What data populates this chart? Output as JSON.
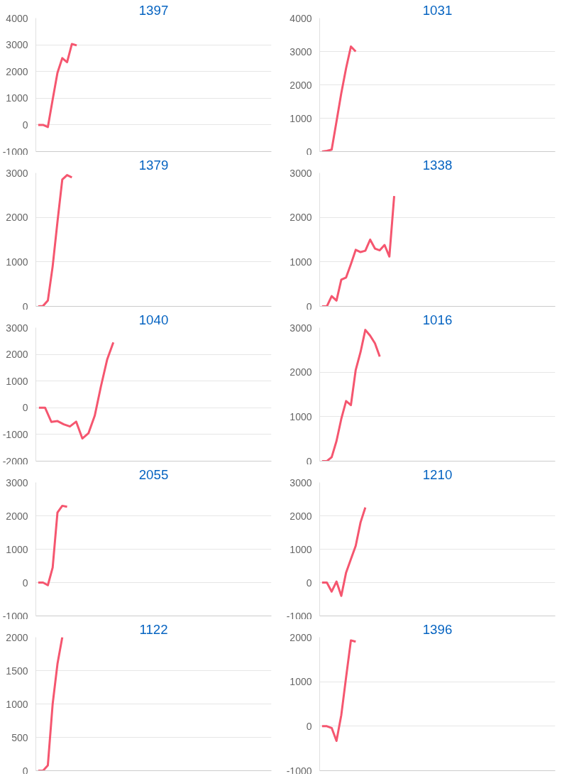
{
  "chart_data": [
    {
      "type": "line",
      "title": "1397",
      "tick_labels": "y",
      "grid": "y",
      "ylim": [
        -1000,
        4000
      ],
      "yticks": [
        -1000,
        0,
        1000,
        2000,
        3000,
        4000
      ],
      "categories": [
        null,
        null,
        null,
        null,
        null,
        null,
        null,
        null,
        null,
        null,
        null,
        null,
        null,
        null,
        null,
        null,
        null,
        null,
        null,
        null,
        null,
        null,
        null,
        null,
        null,
        null,
        null,
        null,
        null,
        null,
        null,
        null,
        null,
        null,
        null,
        null,
        null,
        null,
        null,
        null,
        null,
        null,
        null,
        null,
        null,
        null,
        null,
        null,
        null
      ],
      "series": [
        {
          "color": "#f5566f",
          "values": [
            0,
            0,
            -80,
            950,
            1950,
            2500,
            2350,
            3030,
            2980,
            null,
            null,
            null,
            null,
            null,
            null,
            null,
            null,
            null,
            null,
            null,
            null,
            null,
            null,
            null,
            null,
            null,
            null,
            null,
            null,
            null,
            null,
            null,
            null,
            null,
            null,
            null,
            null,
            null,
            null,
            null,
            null,
            null,
            null,
            null,
            null,
            null,
            null,
            null,
            null
          ]
        }
      ]
    },
    {
      "type": "line",
      "title": "1031",
      "tick_labels": "y",
      "grid": "y",
      "ylim": [
        0,
        4000
      ],
      "yticks": [
        0,
        1000,
        2000,
        3000,
        4000
      ],
      "categories": [
        null,
        null,
        null,
        null,
        null,
        null,
        null,
        null,
        null,
        null,
        null,
        null,
        null,
        null,
        null,
        null,
        null,
        null,
        null,
        null,
        null,
        null,
        null,
        null,
        null,
        null,
        null,
        null,
        null,
        null,
        null,
        null,
        null,
        null,
        null,
        null,
        null,
        null,
        null,
        null,
        null,
        null,
        null,
        null,
        null,
        null,
        null,
        null,
        null
      ],
      "series": [
        {
          "color": "#f5566f",
          "values": [
            0,
            20,
            60,
            900,
            1750,
            2500,
            3150,
            3000,
            null,
            null,
            null,
            null,
            null,
            null,
            null,
            null,
            null,
            null,
            null,
            null,
            null,
            null,
            null,
            null,
            null,
            null,
            null,
            null,
            null,
            null,
            null,
            null,
            null,
            null,
            null,
            null,
            null,
            null,
            null,
            null,
            null,
            null,
            null,
            null,
            null,
            null,
            null,
            null,
            null
          ]
        }
      ]
    },
    {
      "type": "line",
      "title": "1379",
      "tick_labels": "y",
      "grid": "y",
      "ylim": [
        0,
        3000
      ],
      "yticks": [
        0,
        1000,
        2000,
        3000
      ],
      "categories": [
        null,
        null,
        null,
        null,
        null,
        null,
        null,
        null,
        null,
        null,
        null,
        null,
        null,
        null,
        null,
        null,
        null,
        null,
        null,
        null,
        null,
        null,
        null,
        null,
        null,
        null,
        null,
        null,
        null,
        null,
        null,
        null,
        null,
        null,
        null,
        null,
        null,
        null,
        null,
        null,
        null,
        null,
        null,
        null,
        null,
        null,
        null,
        null,
        null
      ],
      "series": [
        {
          "color": "#f5566f",
          "values": [
            0,
            10,
            130,
            900,
            1900,
            2850,
            2950,
            2900,
            null,
            null,
            null,
            null,
            null,
            null,
            null,
            null,
            null,
            null,
            null,
            null,
            null,
            null,
            null,
            null,
            null,
            null,
            null,
            null,
            null,
            null,
            null,
            null,
            null,
            null,
            null,
            null,
            null,
            null,
            null,
            null,
            null,
            null,
            null,
            null,
            null,
            null,
            null,
            null,
            null
          ]
        }
      ]
    },
    {
      "type": "line",
      "title": "1338",
      "tick_labels": "y",
      "grid": "y",
      "ylim": [
        0,
        3000
      ],
      "yticks": [
        0,
        1000,
        2000,
        3000
      ],
      "categories": [
        null,
        null,
        null,
        null,
        null,
        null,
        null,
        null,
        null,
        null,
        null,
        null,
        null,
        null,
        null,
        null,
        null,
        null,
        null,
        null,
        null,
        null,
        null,
        null,
        null,
        null,
        null,
        null,
        null,
        null,
        null,
        null,
        null,
        null,
        null,
        null,
        null,
        null,
        null,
        null,
        null,
        null,
        null,
        null,
        null,
        null,
        null,
        null,
        null
      ],
      "series": [
        {
          "color": "#f5566f",
          "values": [
            0,
            0,
            230,
            130,
            600,
            650,
            950,
            1270,
            1220,
            1250,
            1500,
            1300,
            1260,
            1380,
            1120,
            2480,
            null,
            null,
            null,
            null,
            null,
            null,
            null,
            null,
            null,
            null,
            null,
            null,
            null,
            null,
            null,
            null,
            null,
            null,
            null,
            null,
            null,
            null,
            null,
            null,
            null,
            null,
            null,
            null,
            null,
            null,
            null,
            null,
            null
          ]
        }
      ]
    },
    {
      "type": "line",
      "title": "1040",
      "tick_labels": "y",
      "grid": "y",
      "ylim": [
        -2000,
        3000
      ],
      "yticks": [
        -2000,
        -1000,
        0,
        1000,
        2000,
        3000
      ],
      "categories": [
        null,
        null,
        null,
        null,
        null,
        null,
        null,
        null,
        null,
        null,
        null,
        null,
        null,
        null,
        null,
        null,
        null,
        null,
        null,
        null,
        null,
        null,
        null,
        null,
        null,
        null,
        null,
        null,
        null,
        null,
        null,
        null,
        null,
        null,
        null,
        null,
        null,
        null
      ],
      "series": [
        {
          "color": "#f5566f",
          "values": [
            0,
            0,
            -530,
            -500,
            -620,
            -700,
            -520,
            -1150,
            -950,
            -300,
            800,
            1800,
            2450,
            null,
            null,
            null,
            null,
            null,
            null,
            null,
            null,
            null,
            null,
            null,
            null,
            null,
            null,
            null,
            null,
            null,
            null,
            null,
            null,
            null,
            null,
            null,
            null,
            null
          ]
        }
      ]
    },
    {
      "type": "line",
      "title": "1016",
      "tick_labels": "y",
      "grid": "y",
      "ylim": [
        0,
        3000
      ],
      "yticks": [
        0,
        1000,
        2000,
        3000
      ],
      "categories": [
        null,
        null,
        null,
        null,
        null,
        null,
        null,
        null,
        null,
        null,
        null,
        null,
        null,
        null,
        null,
        null,
        null,
        null,
        null,
        null,
        null,
        null,
        null,
        null,
        null,
        null,
        null,
        null,
        null,
        null,
        null,
        null,
        null,
        null,
        null,
        null,
        null,
        null,
        null,
        null,
        null,
        null,
        null,
        null,
        null,
        null,
        null,
        null,
        null
      ],
      "series": [
        {
          "color": "#f5566f",
          "values": [
            0,
            0,
            90,
            450,
            950,
            1350,
            1260,
            2050,
            2450,
            2950,
            2820,
            2650,
            2350,
            null,
            null,
            null,
            null,
            null,
            null,
            null,
            null,
            null,
            null,
            null,
            null,
            null,
            null,
            null,
            null,
            null,
            null,
            null,
            null,
            null,
            null,
            null,
            null,
            null,
            null,
            null,
            null,
            null,
            null,
            null,
            null,
            null,
            null,
            null,
            null
          ]
        }
      ]
    },
    {
      "type": "line",
      "title": "2055",
      "tick_labels": "y",
      "grid": "y",
      "ylim": [
        -1000,
        3000
      ],
      "yticks": [
        -1000,
        0,
        1000,
        2000,
        3000
      ],
      "categories": [
        null,
        null,
        null,
        null,
        null,
        null,
        null,
        null,
        null,
        null,
        null,
        null,
        null,
        null,
        null,
        null,
        null,
        null,
        null,
        null,
        null,
        null,
        null,
        null,
        null,
        null,
        null,
        null,
        null,
        null,
        null,
        null,
        null,
        null,
        null,
        null,
        null,
        null,
        null,
        null,
        null,
        null,
        null,
        null,
        null,
        null,
        null,
        null,
        null
      ],
      "series": [
        {
          "color": "#f5566f",
          "values": [
            0,
            0,
            -80,
            450,
            2100,
            2300,
            2270,
            null,
            null,
            null,
            null,
            null,
            null,
            null,
            null,
            null,
            null,
            null,
            null,
            null,
            null,
            null,
            null,
            null,
            null,
            null,
            null,
            null,
            null,
            null,
            null,
            null,
            null,
            null,
            null,
            null,
            null,
            null,
            null,
            null,
            null,
            null,
            null,
            null,
            null,
            null,
            null,
            null,
            null
          ]
        }
      ]
    },
    {
      "type": "line",
      "title": "1210",
      "tick_labels": "y",
      "grid": "y",
      "ylim": [
        -1000,
        3000
      ],
      "yticks": [
        -1000,
        0,
        1000,
        2000,
        3000
      ],
      "categories": [
        null,
        null,
        null,
        null,
        null,
        null,
        null,
        null,
        null,
        null,
        null,
        null,
        null,
        null,
        null,
        null,
        null,
        null,
        null,
        null,
        null,
        null,
        null,
        null,
        null,
        null,
        null,
        null,
        null,
        null,
        null,
        null,
        null,
        null,
        null,
        null,
        null,
        null,
        null,
        null,
        null,
        null,
        null,
        null,
        null,
        null,
        null,
        null,
        null
      ],
      "series": [
        {
          "color": "#f5566f",
          "values": [
            0,
            0,
            -270,
            30,
            -400,
            300,
            700,
            1100,
            1800,
            2250,
            null,
            null,
            null,
            null,
            null,
            null,
            null,
            null,
            null,
            null,
            null,
            null,
            null,
            null,
            null,
            null,
            null,
            null,
            null,
            null,
            null,
            null,
            null,
            null,
            null,
            null,
            null,
            null,
            null,
            null,
            null,
            null,
            null,
            null,
            null,
            null,
            null,
            null,
            null
          ]
        }
      ]
    },
    {
      "type": "line",
      "title": "1122",
      "tick_labels": "y",
      "grid": "y",
      "ylim": [
        0,
        2000
      ],
      "yticks": [
        0,
        500,
        1000,
        1500,
        2000
      ],
      "categories": [
        null,
        null,
        null,
        null,
        null,
        null,
        null,
        null,
        null,
        null,
        null,
        null,
        null,
        null,
        null,
        null,
        null,
        null,
        null,
        null,
        null,
        null,
        null,
        null,
        null,
        null,
        null,
        null,
        null,
        null,
        null,
        null,
        null,
        null,
        null,
        null,
        null,
        null,
        null,
        null,
        null,
        null,
        null,
        null,
        null,
        null,
        null,
        null,
        null
      ],
      "series": [
        {
          "color": "#f5566f",
          "values": [
            0,
            0,
            80,
            1000,
            1600,
            2000,
            null,
            null,
            null,
            null,
            null,
            null,
            null,
            null,
            null,
            null,
            null,
            null,
            null,
            null,
            null,
            null,
            null,
            null,
            null,
            null,
            null,
            null,
            null,
            null,
            null,
            null,
            null,
            null,
            null,
            null,
            null,
            null,
            null,
            null,
            null,
            null,
            null,
            null,
            null,
            null,
            null,
            null,
            null
          ]
        }
      ]
    },
    {
      "type": "line",
      "title": "1396",
      "tick_labels": "y",
      "grid": "y",
      "ylim": [
        -1000,
        2000
      ],
      "yticks": [
        -1000,
        0,
        1000,
        2000
      ],
      "categories": [
        null,
        null,
        null,
        null,
        null,
        null,
        null,
        null,
        null,
        null,
        null,
        null,
        null,
        null,
        null,
        null,
        null,
        null,
        null,
        null,
        null,
        null,
        null,
        null,
        null,
        null,
        null,
        null,
        null,
        null,
        null,
        null,
        null,
        null,
        null,
        null,
        null,
        null,
        null,
        null,
        null,
        null,
        null,
        null,
        null,
        null,
        null,
        null,
        null
      ],
      "series": [
        {
          "color": "#f5566f",
          "values": [
            0,
            0,
            -40,
            -330,
            250,
            1100,
            1930,
            1900,
            null,
            null,
            null,
            null,
            null,
            null,
            null,
            null,
            null,
            null,
            null,
            null,
            null,
            null,
            null,
            null,
            null,
            null,
            null,
            null,
            null,
            null,
            null,
            null,
            null,
            null,
            null,
            null,
            null,
            null,
            null,
            null,
            null,
            null,
            null,
            null,
            null,
            null,
            null,
            null,
            null
          ]
        }
      ]
    }
  ]
}
